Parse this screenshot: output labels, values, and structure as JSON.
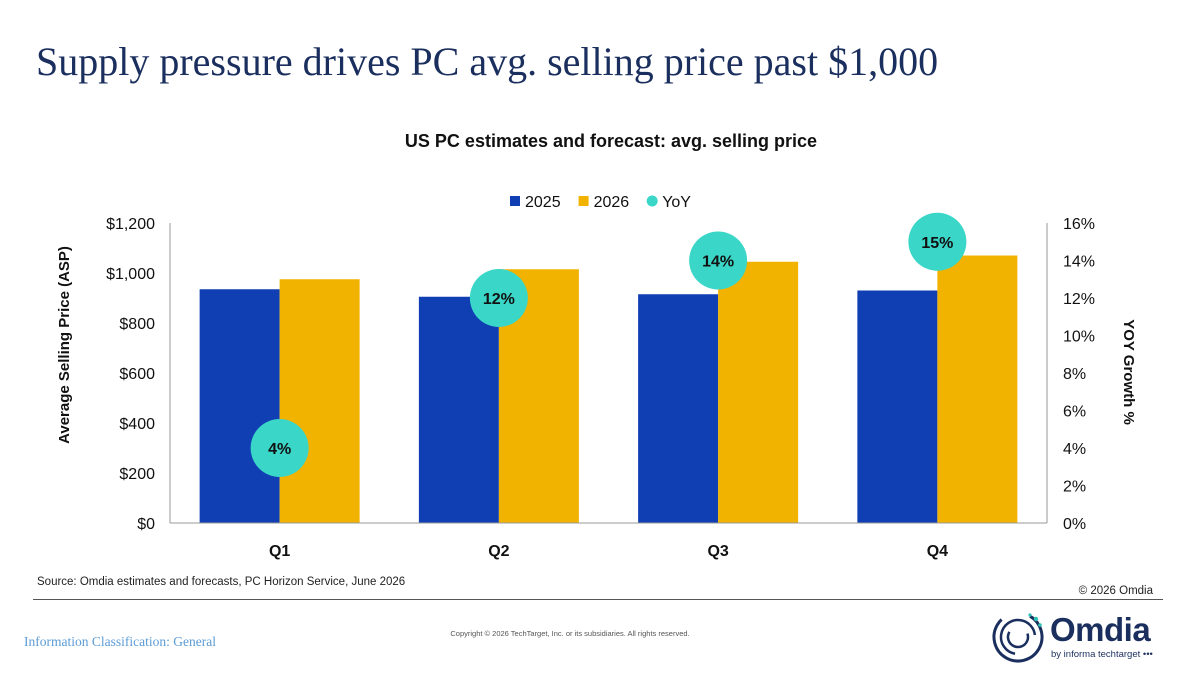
{
  "page": {
    "headline": "Supply pressure drives PC avg. selling price past $1,000",
    "source": "Source: Omdia estimates and forecasts, PC Horizon Service, June 2026",
    "copyright_small": "© 2026 Omdia",
    "classification": "Information Classification: General",
    "footer_copyright": "Copyright © 2026 TechTarget, Inc. or its subsidiaries. All rights reserved.",
    "logo": {
      "word": "Omdia",
      "tagline": "by informa techtarget •••",
      "colors": {
        "ring": "#1b2f5e",
        "dots": "#2ec4b6"
      }
    }
  },
  "chart_data": {
    "type": "bar",
    "title": "US PC estimates and forecast: avg. selling price",
    "categories": [
      "Q1",
      "Q2",
      "Q3",
      "Q4"
    ],
    "series": [
      {
        "name": "2025",
        "values": [
          935,
          905,
          915,
          930
        ],
        "color": "#0f3fb3",
        "axis": "left"
      },
      {
        "name": "2026",
        "values": [
          975,
          1015,
          1045,
          1070
        ],
        "color": "#f2b200",
        "axis": "left"
      },
      {
        "name": "YoY",
        "type": "scatter",
        "values": [
          4,
          12,
          14,
          15
        ],
        "labels": [
          "4%",
          "12%",
          "14%",
          "15%"
        ],
        "color": "#3ad6c8",
        "axis": "right"
      }
    ],
    "ylabel": "Average Selling Price (ASP)",
    "ylim": [
      0,
      1200
    ],
    "yticks": [
      "$0",
      "$200",
      "$400",
      "$600",
      "$800",
      "$1,000",
      "$1,200"
    ],
    "y2label": "YOY Growth %",
    "y2lim": [
      0,
      16
    ],
    "y2ticks": [
      "0%",
      "2%",
      "4%",
      "6%",
      "8%",
      "10%",
      "12%",
      "14%",
      "16%"
    ],
    "legend_position": "top-center",
    "grid": false
  }
}
